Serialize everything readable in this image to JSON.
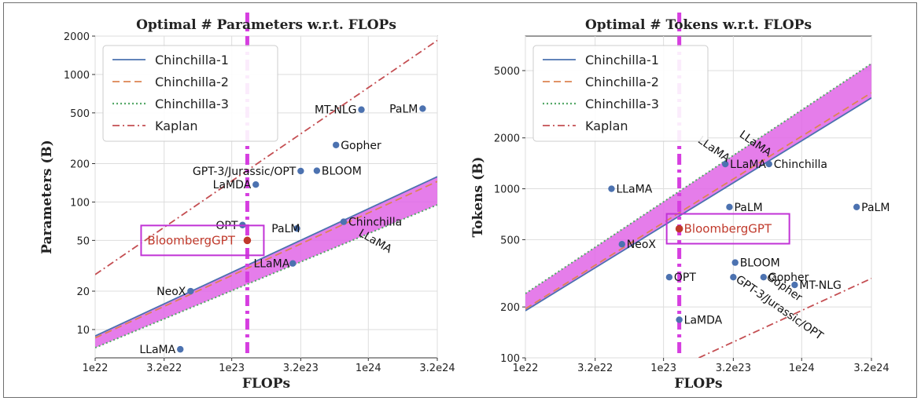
{
  "chart_data": [
    {
      "type": "line",
      "title": "Optimal # Parameters w.r.t. FLOPs",
      "xlabel": "FLOPs",
      "ylabel": "Parameters (B)",
      "xscale": "log",
      "yscale": "log",
      "xlim": [
        1e+22,
        3.2e+24
      ],
      "ylim": [
        6,
        2000
      ],
      "x_ticks": [
        1e+22,
        3.2e+22,
        1e+23,
        3.2e+23,
        1e+24,
        3.2e+24
      ],
      "x_tick_labels": [
        "1e22",
        "3.2e22",
        "1e23",
        "3.2e23",
        "1e24",
        "3.2e24"
      ],
      "y_ticks": [
        10,
        20,
        50,
        100,
        200,
        500,
        1000,
        2000
      ],
      "y_tick_labels": [
        "10",
        "20",
        "50",
        "100",
        "200",
        "500",
        "1000",
        "2000"
      ],
      "grid": true,
      "legend_position": "top-left",
      "series": [
        {
          "name": "Chinchilla-1",
          "color": "#4c72b0",
          "style": "solid",
          "x": [
            1e+22,
            3.2e+24
          ],
          "y": [
            8.9,
            158
          ]
        },
        {
          "name": "Chinchilla-2",
          "color": "#dd8452",
          "style": "dashed",
          "x": [
            1e+22,
            3.2e+24
          ],
          "y": [
            8.6,
            145
          ]
        },
        {
          "name": "Chinchilla-3",
          "color": "#55a868",
          "style": "dotted",
          "x": [
            1e+22,
            3.2e+24
          ],
          "y": [
            7.2,
            95
          ]
        },
        {
          "name": "Kaplan",
          "color": "#c44e52",
          "style": "dashdot",
          "x": [
            1e+22,
            3.2e+24
          ],
          "y": [
            27,
            1850
          ]
        }
      ],
      "band": {
        "color": "#e066e6",
        "x": [
          1e+22,
          3.2e+24
        ],
        "upper": [
          8.9,
          158
        ],
        "lower": [
          7.2,
          95
        ]
      },
      "vline": {
        "x": 1.3e+23,
        "color": "#d63ee0"
      },
      "points": [
        {
          "label": "MT-NLG",
          "x": 8.9e+23,
          "y": 530
        },
        {
          "label": "PaLM",
          "x": 2.5e+24,
          "y": 540
        },
        {
          "label": "Gopher",
          "x": 5.8e+23,
          "y": 280
        },
        {
          "label": "GPT-3/Jurassic/OPT",
          "x": 3.2e+23,
          "y": 175
        },
        {
          "label": "BLOOM",
          "x": 4.2e+23,
          "y": 176
        },
        {
          "label": "LaMDA",
          "x": 1.5e+23,
          "y": 137
        },
        {
          "label": "OPT",
          "x": 1.2e+23,
          "y": 66
        },
        {
          "label": "PaLM",
          "x": 3e+23,
          "y": 62
        },
        {
          "label": "Chinchilla",
          "x": 6.6e+23,
          "y": 70
        },
        {
          "label": "LLaMA",
          "x": 2.8e+23,
          "y": 33
        },
        {
          "label": "NeoX",
          "x": 5e+22,
          "y": 20
        },
        {
          "label": "LLaMA",
          "x": 4.2e+22,
          "y": 7
        }
      ],
      "rotated_label": {
        "text": "LLaMA",
        "x": 8.4e+23,
        "y": 55
      },
      "highlight": {
        "label": "BloombergGPT",
        "x": 1.3e+23,
        "y": 50,
        "color": "#c0392b",
        "box_color": "#c133d6"
      }
    },
    {
      "type": "line",
      "title": "Optimal # Tokens w.r.t. FLOPs",
      "xlabel": "FLOPs",
      "ylabel": "Tokens (B)",
      "xscale": "log",
      "yscale": "log",
      "xlim": [
        1e+22,
        3.2e+24
      ],
      "ylim": [
        100,
        8000
      ],
      "x_ticks": [
        1e+22,
        3.2e+22,
        1e+23,
        3.2e+23,
        1e+24,
        3.2e+24
      ],
      "x_tick_labels": [
        "1e22",
        "3.2e22",
        "1e23",
        "3.2e23",
        "1e24",
        "3.2e24"
      ],
      "y_ticks": [
        100,
        200,
        500,
        1000,
        2000,
        5000
      ],
      "y_tick_labels": [
        "100",
        "200",
        "500",
        "1000",
        "2000",
        "5000"
      ],
      "grid": true,
      "legend_position": "top-left",
      "series": [
        {
          "name": "Chinchilla-1",
          "color": "#4c72b0",
          "style": "solid",
          "x": [
            1e+22,
            3.2e+24
          ],
          "y": [
            190,
            3450
          ]
        },
        {
          "name": "Chinchilla-2",
          "color": "#dd8452",
          "style": "dashed",
          "x": [
            1e+22,
            3.2e+24
          ],
          "y": [
            195,
            3700
          ]
        },
        {
          "name": "Chinchilla-3",
          "color": "#55a868",
          "style": "dotted",
          "x": [
            1e+22,
            3.2e+24
          ],
          "y": [
            240,
            5500
          ]
        },
        {
          "name": "Kaplan",
          "color": "#c44e52",
          "style": "dashdot",
          "x": [
            1.8e+23,
            3.2e+24
          ],
          "y": [
            100,
            295
          ]
        }
      ],
      "band": {
        "color": "#e066e6",
        "x": [
          1e+22,
          3.2e+24
        ],
        "upper": [
          240,
          5500
        ],
        "lower": [
          190,
          3450
        ]
      },
      "vline": {
        "x": 1.3e+23,
        "color": "#d63ee0"
      },
      "points": [
        {
          "label": "LLaMA",
          "x": 4.2e+22,
          "y": 1000
        },
        {
          "label": "LLaMA",
          "x": 2.8e+23,
          "y": 1400
        },
        {
          "label": "Chinchilla",
          "x": 5.8e+23,
          "y": 1400
        },
        {
          "label": "PaLM",
          "x": 3e+23,
          "y": 780
        },
        {
          "label": "PaLM",
          "x": 2.5e+24,
          "y": 780
        },
        {
          "label": "NeoX",
          "x": 5e+22,
          "y": 470
        },
        {
          "label": "BLOOM",
          "x": 3.3e+23,
          "y": 366
        },
        {
          "label": "OPT",
          "x": 1.1e+23,
          "y": 300
        },
        {
          "label": "Gopher",
          "x": 5.3e+23,
          "y": 300
        },
        {
          "label": "MT-NLG",
          "x": 8.9e+23,
          "y": 270
        },
        {
          "label": "LaMDA",
          "x": 1.3e+23,
          "y": 168
        }
      ],
      "rotated_labels": [
        {
          "text": "LLaMA",
          "x": 1.75e+23,
          "y": 1900,
          "angle": 35
        },
        {
          "text": "LLaMA",
          "x": 3.5e+23,
          "y": 2050,
          "angle": 35
        },
        {
          "text": "GPT-3/Jurassic/OPT",
          "x": 3.3e+23,
          "y": 285,
          "angle": 35
        },
        {
          "text": "Gopher",
          "x": 5.5e+23,
          "y": 295,
          "angle": 35
        }
      ],
      "unlabeled_points": [
        {
          "x": 3.2e+23,
          "y": 300
        }
      ],
      "highlight": {
        "label": "BloombergGPT",
        "x": 1.3e+23,
        "y": 580,
        "color": "#c0392b",
        "box_color": "#c133d6"
      }
    }
  ]
}
